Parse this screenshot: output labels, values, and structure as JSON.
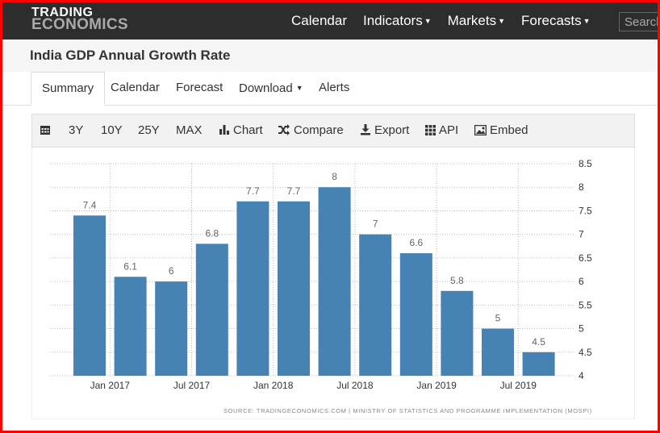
{
  "nav": {
    "logo_line1": "TRADING",
    "logo_line2": "ECONOMICS",
    "links": [
      {
        "label": "Calendar",
        "dropdown": false
      },
      {
        "label": "Indicators",
        "dropdown": true
      },
      {
        "label": "Markets",
        "dropdown": true
      },
      {
        "label": "Forecasts",
        "dropdown": true
      }
    ],
    "search_placeholder": "Search"
  },
  "page": {
    "title": "India GDP Annual Growth Rate"
  },
  "tabs": {
    "summary": "Summary",
    "calendar": "Calendar",
    "forecast": "Forecast",
    "download": "Download",
    "alerts": "Alerts",
    "active": "Summary"
  },
  "toolbar": {
    "range_3y": "3Y",
    "range_10y": "10Y",
    "range_25y": "25Y",
    "range_max": "MAX",
    "chart": "Chart",
    "compare": "Compare",
    "export": "Export",
    "api": "API",
    "embed": "Embed"
  },
  "chart": {
    "source": "SOURCE: TRADINGECONOMICS.COM | MINISTRY OF STATISTICS AND PROGRAMME IMPLEMENTATION (MOSPI)",
    "bar_color": "#4682b4"
  },
  "chart_data": {
    "type": "bar",
    "title": "India GDP Annual Growth Rate",
    "values": [
      7.4,
      6.1,
      6,
      6.8,
      7.7,
      7.7,
      8,
      7,
      6.6,
      5.8,
      5,
      4.5
    ],
    "value_labels": [
      "7.4",
      "6.1",
      "6",
      "6.8",
      "7.7",
      "7.7",
      "8",
      "7",
      "6.6",
      "5.8",
      "5",
      "4.5"
    ],
    "x_tick_labels": [
      "Jan 2017",
      "Jul 2017",
      "Jan 2018",
      "Jul 2018",
      "Jan 2019",
      "Jul 2019"
    ],
    "y_ticks": [
      "4",
      "4.5",
      "5",
      "5.5",
      "6",
      "6.5",
      "7",
      "7.5",
      "8",
      "8.5"
    ],
    "ylim": [
      4,
      8.5
    ],
    "y_axis_side": "right",
    "grid": true
  }
}
